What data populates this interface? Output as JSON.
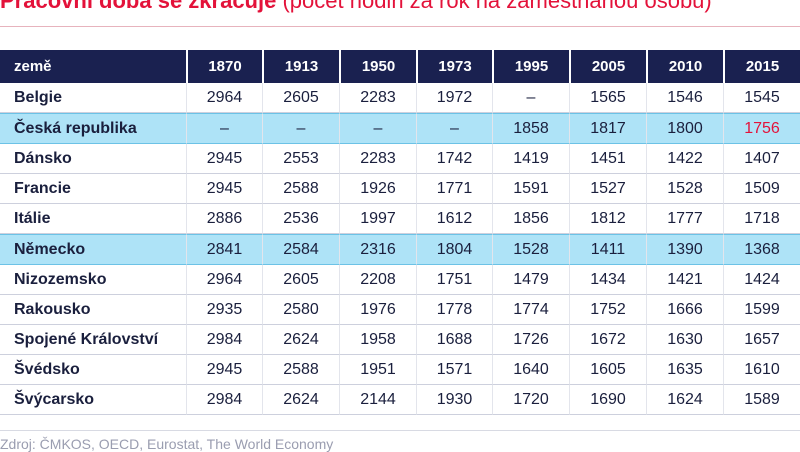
{
  "title": {
    "main": "Pracovní doba se zkracuje",
    "subtitle": "(počet hodin za rok na zaměstnanou osobu)"
  },
  "table": {
    "header": [
      "země",
      "1870",
      "1913",
      "1950",
      "1973",
      "1995",
      "2005",
      "2010",
      "2015"
    ],
    "rows": [
      {
        "country": "Belgie",
        "values": [
          "2964",
          "2605",
          "2283",
          "1972",
          "–",
          "1565",
          "1546",
          "1545"
        ]
      },
      {
        "country": "Česká republika",
        "values": [
          "–",
          "–",
          "–",
          "–",
          "1858",
          "1817",
          "1800",
          "1756"
        ],
        "highlight": true
      },
      {
        "country": "Dánsko",
        "values": [
          "2945",
          "2553",
          "2283",
          "1742",
          "1419",
          "1451",
          "1422",
          "1407"
        ]
      },
      {
        "country": "Francie",
        "values": [
          "2945",
          "2588",
          "1926",
          "1771",
          "1591",
          "1527",
          "1528",
          "1509"
        ]
      },
      {
        "country": "Itálie",
        "values": [
          "2886",
          "2536",
          "1997",
          "1612",
          "1856",
          "1812",
          "1777",
          "1718"
        ]
      },
      {
        "country": "Německo",
        "values": [
          "2841",
          "2584",
          "2316",
          "1804",
          "1528",
          "1411",
          "1390",
          "1368"
        ],
        "highlight": true
      },
      {
        "country": "Nizozemsko",
        "values": [
          "2964",
          "2605",
          "2208",
          "1751",
          "1479",
          "1434",
          "1421",
          "1424"
        ]
      },
      {
        "country": "Rakousko",
        "values": [
          "2935",
          "2580",
          "1976",
          "1778",
          "1774",
          "1752",
          "1666",
          "1599"
        ]
      },
      {
        "country": "Spojené Království",
        "values": [
          "2984",
          "2624",
          "1958",
          "1688",
          "1726",
          "1672",
          "1630",
          "1657"
        ]
      },
      {
        "country": "Švédsko",
        "values": [
          "2945",
          "2588",
          "1951",
          "1571",
          "1640",
          "1605",
          "1635",
          "1610"
        ]
      },
      {
        "country": "Švýcarsko",
        "values": [
          "2984",
          "2624",
          "2144",
          "1930",
          "1720",
          "1690",
          "1624",
          "1589"
        ]
      }
    ]
  },
  "source": "Zdroj: ČMKOS, OECD, Eurostat, The World Economy",
  "colors": {
    "header_bg": "#1a2150",
    "highlight_bg": "#aee3f7",
    "accent_red": "#e3123a"
  }
}
